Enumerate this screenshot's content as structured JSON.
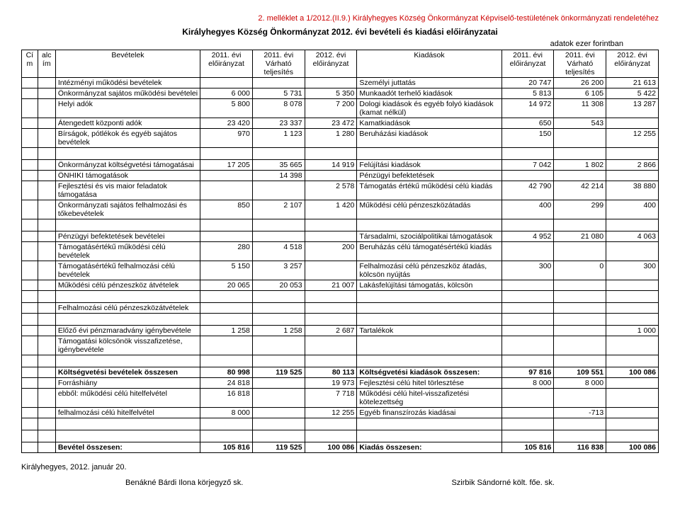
{
  "header": "2. melléklet a 1/2012.(II.9.) Királyhegyes Község Önkormányzat Képviselő-testületének önkormányzati rendeletéhez",
  "title": "Királyhegyes Község Önkormányzat 2012. évi bevételi és kiadási előirányzatai",
  "unit": "adatok ezer forintban",
  "cols": {
    "cim": "Cí\nm",
    "alcim": "alc\ním",
    "bev": "Bevételek",
    "c2011": "2011. évi előirányzat",
    "cVarh": "2011. évi Várható teljesítés",
    "c2012": "2012. évi előirányzat",
    "kiad": "Kiadások"
  },
  "rows": [
    {
      "b": "Intézményi működési bevételek",
      "v": [
        "",
        "",
        ""
      ],
      "k": "Személyi juttatás",
      "w": [
        "20 747",
        "26 200",
        "21 613"
      ]
    },
    {
      "b": "Önkormányzat sajátos működési bevételei",
      "v": [
        "6 000",
        "5 731",
        "5 350"
      ],
      "k": "Munkaadót terhelő kiadások",
      "w": [
        "5 813",
        "6 105",
        "5 422"
      ]
    },
    {
      "b": "Helyi adók",
      "v": [
        "5 800",
        "8 078",
        "7 200"
      ],
      "k": "Dologi kiadások és egyéb folyó kiadások (kamat nélkül)",
      "w": [
        "14 972",
        "11 308",
        "13 287"
      ]
    },
    {
      "b": "Átengedett központi adók",
      "v": [
        "23 420",
        "23 337",
        "23 472"
      ],
      "k": "Kamatkiadások",
      "w": [
        "650",
        "543",
        ""
      ]
    },
    {
      "b": "Bírságok, pótlékok és egyéb sajátos bevételek",
      "v": [
        "970",
        "1 123",
        "1 280"
      ],
      "k": "Beruházási kiadások",
      "w": [
        "150",
        "",
        "12 255"
      ]
    },
    {
      "spacer": true
    },
    {
      "b": "Önkormányzat költségvetési támogatásai",
      "v": [
        "17 205",
        "35 665",
        "14 919"
      ],
      "k": "Felújítási kiadások",
      "w": [
        "7 042",
        "1 802",
        "2 866"
      ]
    },
    {
      "b": "ÖNHIKI támogatások",
      "v": [
        "",
        "14 398",
        ""
      ],
      "k": "Pénzügyi befektetések",
      "w": [
        "",
        "",
        ""
      ]
    },
    {
      "b": "Fejlesztési és vis maior feladatok támogatása",
      "v": [
        "",
        "",
        "2 578"
      ],
      "k": "Támogatás értékű működési célú kiadás",
      "w": [
        "42 790",
        "42 214",
        "38 880"
      ]
    },
    {
      "b": "Önkormányzati sajátos felhalmozási és tőkebevételek",
      "v": [
        "850",
        "2 107",
        "1 420"
      ],
      "k": "Működési célú pénzeszközátadás",
      "w": [
        "400",
        "299",
        "400"
      ]
    },
    {
      "spacer": true
    },
    {
      "b": "Pénzügyi befektetések bevételei",
      "v": [
        "",
        "",
        ""
      ],
      "k": "Társadalmi, szociálpolitikai támogatások",
      "w": [
        "4 952",
        "21 080",
        "4 063"
      ]
    },
    {
      "b": "Támogatásértékű működési célú bevételek",
      "v": [
        "280",
        "4 518",
        "200"
      ],
      "k": "Beruházás célú támogatésértékű kiadás",
      "w": [
        "",
        "",
        ""
      ]
    },
    {
      "b": "Támogatásértékű felhalmozási célú bevételek",
      "v": [
        "5 150",
        "3 257",
        ""
      ],
      "k": "Felhalmozási célú pénzeszköz átadás, kölcsön nyújtás",
      "w": [
        "300",
        "0",
        "300"
      ]
    },
    {
      "b": "Működési célú pénzeszköz átvételek",
      "v": [
        "20 065",
        "20 053",
        "21 007"
      ],
      "k": "Lakásfelújítási támogatás, kölcsön",
      "w": [
        "",
        "",
        ""
      ]
    },
    {
      "spacer": true
    },
    {
      "b": "Felhalmozási célú pénzeszközátvételek",
      "v": [
        "",
        "",
        ""
      ],
      "k": "",
      "w": [
        "",
        "",
        ""
      ]
    },
    {
      "spacer": true
    },
    {
      "b": "Előző évi pénzmaradvány igénybevétele",
      "v": [
        "1 258",
        "1 258",
        "2 687"
      ],
      "k": "Tartalékok",
      "w": [
        "",
        "",
        "1 000"
      ]
    },
    {
      "b": "Támogatási kölcsönök visszafizetése, igénybevétele",
      "v": [
        "",
        "",
        ""
      ],
      "k": "",
      "w": [
        "",
        "",
        ""
      ]
    },
    {
      "spacer": true
    },
    {
      "b": "Költségvetési bevételek összesen",
      "v": [
        "80 998",
        "119 525",
        "80 113"
      ],
      "k": "Költségvetési kiadások összesen:",
      "w": [
        "97 816",
        "109 551",
        "100 086"
      ],
      "bold": true
    },
    {
      "b": "Forráshiány",
      "v": [
        "24 818",
        "",
        "19 973"
      ],
      "k": "Fejlesztési célú hitel törlesztése",
      "w": [
        "8 000",
        "8 000",
        ""
      ]
    },
    {
      "b": "ebből: működési célú hitelfelvétel",
      "v": [
        "16 818",
        "",
        "7 718"
      ],
      "k": "Működési célú hitel-visszafizetési kötelezettség",
      "w": [
        "",
        "",
        ""
      ]
    },
    {
      "b": "         felhalmozási célú hitelfelvétel",
      "v": [
        "8 000",
        "",
        "12 255"
      ],
      "k": "Egyéb finanszírozás kiadásai",
      "w": [
        "",
        "-713",
        ""
      ]
    },
    {
      "spacer": true
    },
    {
      "spacer": true
    },
    {
      "b": "Bevétel összesen:",
      "v": [
        "105 816",
        "119 525",
        "100 086"
      ],
      "k": "Kiadás összesen:",
      "w": [
        "105 816",
        "116 838",
        "100 086"
      ],
      "bold": true
    }
  ],
  "footer": {
    "place_date": "Királyhegyes, 2012. január 20.",
    "sign1": "Benákné Bárdi Ilona körjegyző sk.",
    "sign2": "Szirbik Sándorné költ. főe. sk."
  }
}
